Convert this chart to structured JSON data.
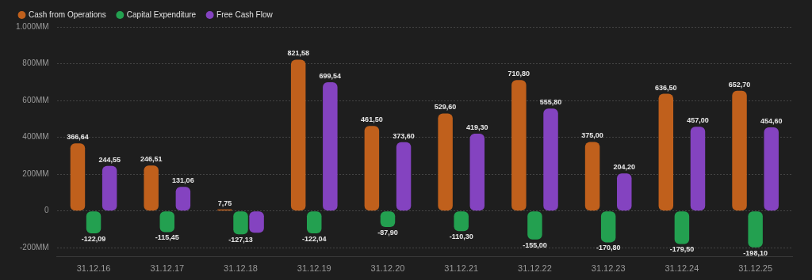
{
  "chart_data": {
    "type": "bar",
    "categories": [
      "31.12.16",
      "31.12.17",
      "31.12.18",
      "31.12.19",
      "31.12.20",
      "31.12.21",
      "31.12.22",
      "31.12.23",
      "31.12.24",
      "31.12.25"
    ],
    "series": [
      {
        "name": "Cash from Operations",
        "color": "#c0601c",
        "values": [
          366.64,
          246.51,
          7.75,
          821.58,
          461.5,
          529.6,
          710.8,
          375,
          636.5,
          652.7
        ],
        "value_labels": [
          "366,64",
          "246,51",
          "7,75",
          "821,58",
          "461,50",
          "529,60",
          "710,80",
          "375,00",
          "636,50",
          "652,70"
        ]
      },
      {
        "name": "Capital Expenditure",
        "color": "#23a050",
        "values": [
          -122.09,
          -115.45,
          -127.13,
          -122.04,
          -87.9,
          -110.3,
          -155,
          -170.8,
          -179.5,
          -198.1
        ],
        "value_labels": [
          "-122,09",
          "-115,45",
          "-127,13",
          "-122,04",
          "-87,90",
          "-110,30",
          "-155,00",
          "-170,80",
          "-179,50",
          "-198,10"
        ]
      },
      {
        "name": "Free Cash Flow",
        "color": "#8443c0",
        "values": [
          244.55,
          131.06,
          -119,
          699.54,
          373.6,
          419.3,
          555.8,
          204.2,
          457,
          454.6
        ],
        "value_labels": [
          "244,55",
          "131,06",
          null,
          "699,54",
          "373,60",
          "419,30",
          "555,80",
          "204,20",
          "457,00",
          "454,60"
        ]
      }
    ],
    "ylim": [
      -250,
      1000
    ],
    "yticks": [
      {
        "value": -200,
        "label": "-200MM"
      },
      0,
      {
        "value": 200,
        "label": "200MM"
      },
      {
        "value": 400,
        "label": "400MM"
      },
      {
        "value": 600,
        "label": "600MM"
      },
      {
        "value": 800,
        "label": "800MM"
      },
      {
        "value": 1000,
        "label": "1.000MM"
      }
    ],
    "grid": "y",
    "legend": "top left"
  }
}
